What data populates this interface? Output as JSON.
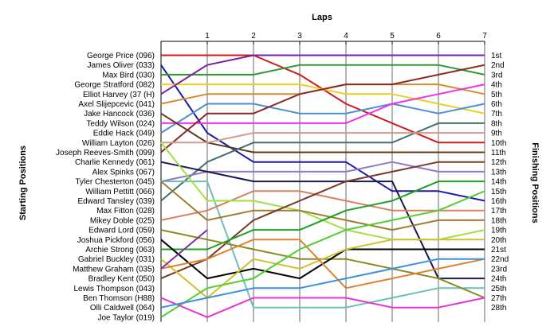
{
  "chart_data": {
    "type": "line",
    "title": "Laps",
    "ylabel_left": "Starting Positions",
    "ylabel_right": "Finishing Positions",
    "laps": [
      1,
      2,
      3,
      4,
      5,
      6,
      7
    ],
    "starting_labels": [
      "George Price (096)",
      "James Oliver (033)",
      "Max Bird (030)",
      "George Stratford (082)",
      "Elliot Harvey (37 (H)",
      "Axel Slijepcevic (041)",
      "Jake Hancock (036)",
      "Teddy Wilson (024)",
      "Eddie Hack (049)",
      "William Layton (026)",
      "Joseph Reeves-Smith (099)",
      "Charlie Kennedy (061)",
      "Alex Spinks (067)",
      "Tyler Chesterton (045)",
      "William Pettitt (066)",
      "Edward Tansley (039)",
      "Max Fitton (028)",
      "Mikey Doble (025)",
      "Edward Lord (059)",
      "Joshua Pickford (056)",
      "Archie Strong (063)",
      "Gabriel Buckley (031)",
      "Matthew Graham (035)",
      "Bradley Kent (050)",
      "Lewis Thompson (043)",
      "Ben Thomson (H88)",
      "Olli Caldwell (064)",
      "Joe Taylor (019)"
    ],
    "finishing_labels": [
      "1st",
      "2nd",
      "3rd",
      "4th",
      "5th",
      "6th",
      "7th",
      "8th",
      "9th",
      "10th",
      "11th",
      "12th",
      "13th",
      "14th",
      "15th",
      "16th",
      "17th",
      "18th",
      "19th",
      "20th",
      "21st",
      "22nd",
      "23rd",
      "24th",
      "25th",
      "27th",
      "28th"
    ],
    "series": [
      {
        "color": "#cc1c1c",
        "positions": [
          1,
          1,
          1,
          3,
          6,
          8,
          10,
          10
        ]
      },
      {
        "color": "#1a1aa8",
        "positions": [
          2,
          9,
          12,
          12,
          12,
          15,
          15,
          16
        ]
      },
      {
        "color": "#2e9a2e",
        "positions": [
          3,
          3,
          3,
          2,
          2,
          2,
          2,
          3
        ]
      },
      {
        "color": "#e6d21e",
        "positions": [
          4,
          4,
          4,
          4,
          5,
          5,
          6,
          7
        ]
      },
      {
        "color": "#7a1fa8",
        "positions": [
          5,
          2,
          1,
          1,
          1,
          1,
          1,
          1
        ]
      },
      {
        "color": "#d88a30",
        "positions": [
          6,
          5,
          5,
          5,
          4,
          4,
          4,
          5
        ]
      },
      {
        "color": "#4a8fd8",
        "positions": [
          9,
          6,
          6,
          7,
          7,
          6,
          7,
          6
        ]
      },
      {
        "color": "#ee30ee",
        "positions": [
          8,
          8,
          8,
          8,
          8,
          6,
          5,
          4
        ]
      },
      {
        "color": "#8a2828",
        "positions": [
          11,
          7,
          7,
          5,
          4,
          4,
          3,
          2
        ]
      },
      {
        "color": "#5c3a1a",
        "positions": [
          7,
          10,
          11,
          11,
          11,
          11,
          11,
          11
        ]
      },
      {
        "color": "#456e6e",
        "positions": [
          16,
          12,
          10,
          10,
          10,
          10,
          8,
          8
        ]
      },
      {
        "color": "#8f78d0",
        "positions": [
          14,
          13,
          13,
          13,
          13,
          12,
          13,
          13
        ]
      },
      {
        "color": "#d49a8a",
        "positions": [
          10,
          10,
          9,
          9,
          9,
          9,
          9,
          9
        ]
      },
      {
        "color": "#1a1a50",
        "positions": [
          12,
          13,
          14,
          14,
          14,
          14,
          24,
          24
        ]
      },
      {
        "color": "#6ac0b8",
        "positions": [
          14,
          14,
          27,
          27,
          27,
          26,
          25,
          25
        ]
      },
      {
        "color": "#d88060",
        "positions": [
          18,
          17,
          15,
          15,
          16,
          17,
          17,
          17
        ]
      },
      {
        "color": "#a0e040",
        "positions": [
          10,
          16,
          16,
          17,
          19,
          20,
          20,
          19
        ]
      },
      {
        "color": "#a07c30",
        "positions": [
          14,
          18,
          17,
          17,
          18,
          19,
          18,
          18
        ]
      },
      {
        "color": "#7a3a2a",
        "positions": [
          24,
          22,
          18,
          16,
          14,
          13,
          12,
          12
        ]
      },
      {
        "color": "#20a020",
        "positions": [
          21,
          21,
          19,
          19,
          17,
          16,
          14,
          14
        ]
      },
      {
        "color": "#8a8a20",
        "positions": [
          19,
          20,
          21,
          22,
          22,
          23,
          24,
          26
        ]
      },
      {
        "color": "#000000",
        "positions": [
          20,
          24,
          23,
          24,
          21,
          21,
          21,
          21
        ]
      },
      {
        "color": "#d0c030",
        "positions": [
          22,
          26,
          22,
          23,
          21,
          20,
          20,
          20
        ]
      },
      {
        "color": "#e08030",
        "positions": [
          23,
          22,
          20,
          20,
          25,
          24,
          23,
          22
        ]
      },
      {
        "color": "#8030a0",
        "positions": [
          23,
          19
        ]
      },
      {
        "color": "#50d030",
        "positions": [
          28,
          25,
          24,
          21,
          19,
          18,
          17,
          15
        ]
      },
      {
        "color": "#e830d8",
        "positions": [
          26,
          28,
          26,
          26,
          26,
          27,
          27,
          26
        ]
      },
      {
        "color": "#3a90e0",
        "positions": [
          27,
          26,
          25,
          25,
          24,
          23,
          22,
          22
        ]
      }
    ]
  }
}
